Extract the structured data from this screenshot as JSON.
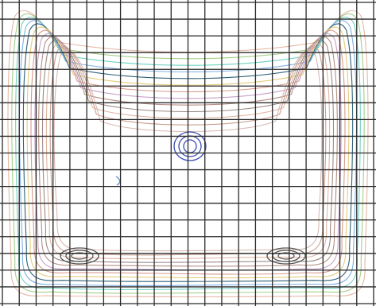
{
  "chart_data": {
    "type": "contour",
    "title": "",
    "xlabel": "",
    "ylabel": "",
    "grid": true,
    "grid_columns": 22,
    "grid_rows": 18,
    "legend": "none",
    "series": [
      {
        "level": 1,
        "color": "#e7b7a6"
      },
      {
        "level": 2,
        "color": "#a4cf87"
      },
      {
        "level": 3,
        "color": "#6fd2c2"
      },
      {
        "level": 4,
        "color": "#7fb0e8"
      },
      {
        "level": 5,
        "color": "#2f6178"
      },
      {
        "level": 6,
        "color": "#e5cc7a"
      },
      {
        "level": 7,
        "color": "#d99a8e"
      },
      {
        "level": 8,
        "color": "#c7a1c9"
      },
      {
        "level": 9,
        "color": "#b58f85"
      },
      {
        "level": 10,
        "color": "#9c8b86"
      },
      {
        "level": 11,
        "color": "#e2b6a3"
      },
      {
        "level": 12,
        "color": "#c99f90"
      },
      {
        "level": 13,
        "color": "#d8b9b2"
      }
    ],
    "features": [
      {
        "name": "central-hotspot",
        "color": "#3a4bb3",
        "rings": 3
      },
      {
        "name": "left-bottom-hotspot",
        "color": "#555555",
        "rings": 3
      },
      {
        "name": "right-bottom-hotspot",
        "color": "#555555",
        "rings": 3
      },
      {
        "name": "left-mark",
        "color": "#5b8ad6"
      }
    ]
  }
}
